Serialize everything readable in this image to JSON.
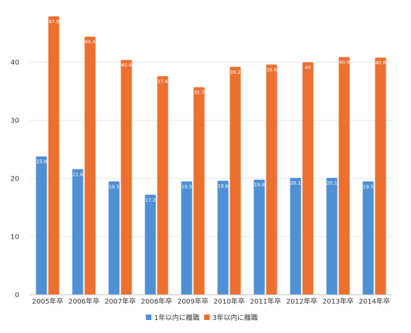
{
  "chart_data": {
    "type": "bar",
    "title": "",
    "xlabel": "",
    "ylabel": "",
    "ylim": [
      0,
      50
    ],
    "yticks": [
      0,
      10,
      20,
      30,
      40
    ],
    "grid": true,
    "legend_position": "bottom",
    "categories": [
      "2005年卒",
      "2006年卒",
      "2007年卒",
      "2008年卒",
      "2009年卒",
      "2010年卒",
      "2011年卒",
      "2012年卒",
      "2013年卒",
      "2014年卒"
    ],
    "series": [
      {
        "name": "1年以内に離職",
        "color": "#4f90d4",
        "values": [
          23.8,
          21.6,
          19.5,
          17.2,
          19.5,
          19.6,
          19.8,
          20.1,
          20.1,
          19.5
        ],
        "labels": [
          "23.8",
          "21.6",
          "19.5",
          "17.2",
          "19.5",
          "19.6",
          "19.8",
          "20.1",
          "20.1",
          "19.5"
        ]
      },
      {
        "name": "3年以内に離職",
        "color": "#ec7030",
        "values": [
          47.9,
          44.4,
          40.4,
          37.6,
          35.7,
          39.2,
          39.6,
          40,
          40.9,
          40.8
        ],
        "labels": [
          "47.9",
          "44.4",
          "40.4",
          "37.6",
          "35.7",
          "39.2",
          "39.6",
          "40",
          "40.9",
          "40.8"
        ]
      }
    ]
  }
}
